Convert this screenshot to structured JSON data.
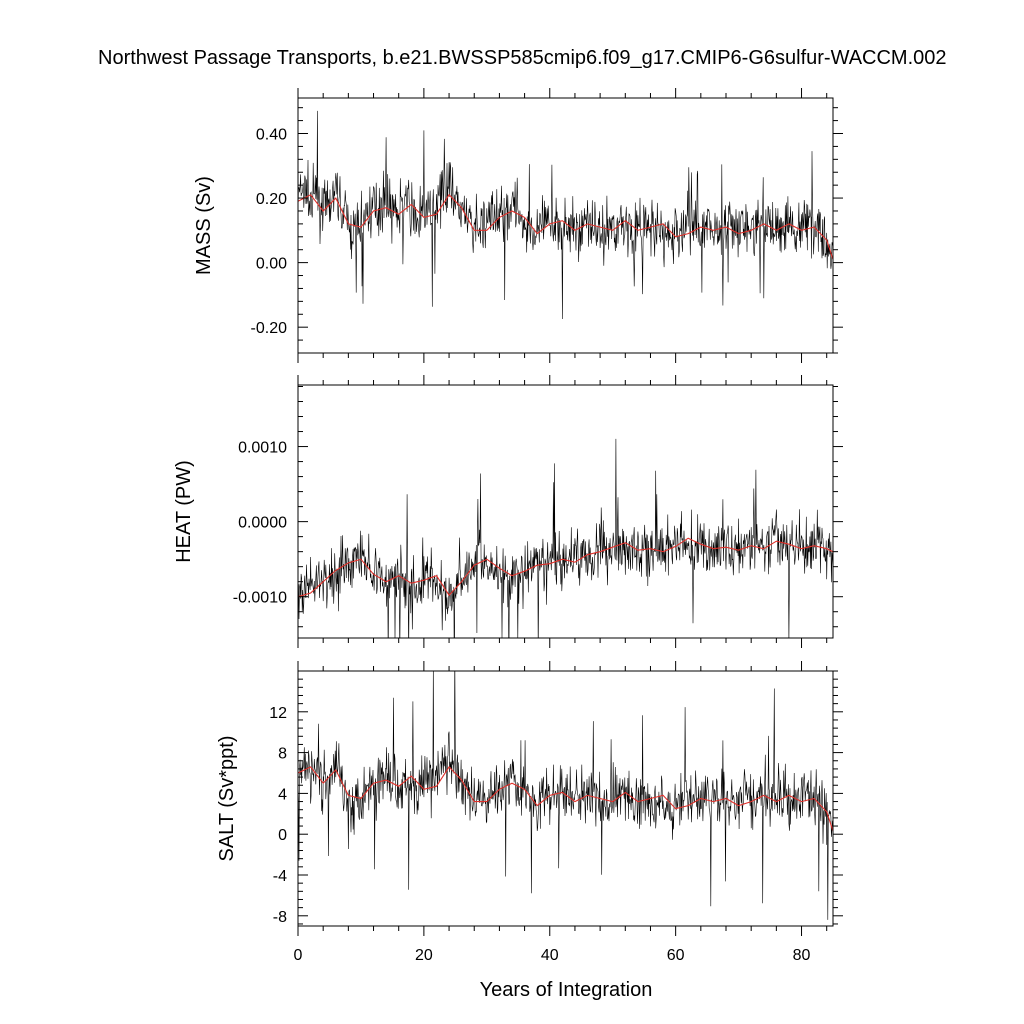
{
  "title": "Northwest Passage Transports, b.e21.BWSSP585cmip6.f09_g17.CMIP6-G6sulfur-WACCM.002",
  "xlabel": "Years of Integration",
  "colors": {
    "raw": "#000000",
    "smooth": "#e0302a",
    "frame": "#000000"
  },
  "chart_data": [
    {
      "type": "line",
      "ylabel": "MASS (Sv)",
      "xlim": [
        0,
        85
      ],
      "ylim": [
        -0.28,
        0.51
      ],
      "x_ticks": [
        0,
        20,
        40,
        60,
        80
      ],
      "x_tick_labels": [
        "0",
        "20",
        "40",
        "60",
        "80"
      ],
      "y_ticks": [
        -0.2,
        0.0,
        0.2,
        0.4
      ],
      "y_tick_labels": [
        "-0.20",
        "0.00",
        "0.20",
        "0.40"
      ],
      "series": [
        {
          "role": "monthly",
          "x": [
            0,
            1,
            2,
            3,
            4,
            5,
            6,
            7,
            8,
            9,
            10,
            11,
            12,
            13,
            14,
            15,
            16,
            17,
            18,
            19,
            20,
            21,
            22,
            23,
            24,
            25,
            26,
            27,
            28,
            29,
            30,
            31,
            32,
            33,
            34,
            35,
            36,
            37,
            38,
            39,
            40,
            41,
            42,
            43,
            44,
            45,
            46,
            47,
            48,
            49,
            50,
            51,
            52,
            53,
            54,
            55,
            56,
            57,
            58,
            59,
            60,
            61,
            62,
            63,
            64,
            65,
            66,
            67,
            68,
            69,
            70,
            71,
            72,
            73,
            74,
            75,
            76,
            77,
            78,
            79,
            80,
            81,
            82,
            83,
            84,
            85
          ],
          "y": [
            0.2,
            0.23,
            0.18,
            0.21,
            0.16,
            0.17,
            0.21,
            0.18,
            0.12,
            0.09,
            0.13,
            0.16,
            0.17,
            0.18,
            0.2,
            0.17,
            0.15,
            0.2,
            0.16,
            0.14,
            0.15,
            0.16,
            0.18,
            0.22,
            0.25,
            0.2,
            0.15,
            0.12,
            0.1,
            0.11,
            0.12,
            0.14,
            0.15,
            0.17,
            0.18,
            0.16,
            0.12,
            0.1,
            0.08,
            0.12,
            0.11,
            0.14,
            0.13,
            0.1,
            0.12,
            0.11,
            0.14,
            0.12,
            0.09,
            0.1,
            0.11,
            0.13,
            0.12,
            0.09,
            0.1,
            0.12,
            0.11,
            0.1,
            0.09,
            0.08,
            0.09,
            0.1,
            0.12,
            0.11,
            0.1,
            0.09,
            0.12,
            0.1,
            0.11,
            0.09,
            0.1,
            0.12,
            0.11,
            0.1,
            0.13,
            0.12,
            0.1,
            0.11,
            0.12,
            0.1,
            0.13,
            0.12,
            0.11,
            0.1,
            0.05,
            0.02
          ]
        },
        {
          "role": "smoothed",
          "x": [
            0,
            2,
            4,
            6,
            8,
            10,
            12,
            14,
            16,
            18,
            20,
            22,
            24,
            26,
            28,
            30,
            32,
            34,
            36,
            38,
            40,
            42,
            44,
            46,
            48,
            50,
            52,
            54,
            56,
            58,
            60,
            62,
            64,
            66,
            68,
            70,
            72,
            74,
            76,
            78,
            80,
            82,
            84,
            85
          ],
          "y": [
            0.19,
            0.21,
            0.16,
            0.2,
            0.12,
            0.11,
            0.16,
            0.17,
            0.15,
            0.18,
            0.14,
            0.15,
            0.21,
            0.17,
            0.1,
            0.1,
            0.14,
            0.16,
            0.14,
            0.09,
            0.12,
            0.13,
            0.1,
            0.12,
            0.11,
            0.1,
            0.13,
            0.1,
            0.11,
            0.12,
            0.08,
            0.09,
            0.11,
            0.1,
            0.11,
            0.09,
            0.1,
            0.12,
            0.1,
            0.12,
            0.1,
            0.11,
            0.07,
            0.01
          ]
        }
      ]
    },
    {
      "type": "line",
      "ylabel": "HEAT (PW)",
      "xlim": [
        0,
        85
      ],
      "ylim": [
        -0.00155,
        0.00182
      ],
      "x_ticks": [
        0,
        20,
        40,
        60,
        80
      ],
      "x_tick_labels": [
        "0",
        "20",
        "40",
        "60",
        "80"
      ],
      "y_ticks": [
        -0.001,
        0.0,
        0.001
      ],
      "y_tick_labels": [
        "-0.0010",
        "0.0000",
        "0.0010"
      ],
      "series": [
        {
          "role": "monthly",
          "x": [
            0,
            1,
            2,
            3,
            4,
            5,
            6,
            7,
            8,
            9,
            10,
            11,
            12,
            13,
            14,
            15,
            16,
            17,
            18,
            19,
            20,
            21,
            22,
            23,
            24,
            25,
            26,
            27,
            28,
            29,
            30,
            31,
            32,
            33,
            34,
            35,
            36,
            37,
            38,
            39,
            40,
            41,
            42,
            43,
            44,
            45,
            46,
            47,
            48,
            49,
            50,
            51,
            52,
            53,
            54,
            55,
            56,
            57,
            58,
            59,
            60,
            61,
            62,
            63,
            64,
            65,
            66,
            67,
            68,
            69,
            70,
            71,
            72,
            73,
            74,
            75,
            76,
            77,
            78,
            79,
            80,
            81,
            82,
            83,
            84,
            85
          ],
          "y": [
            -0.00095,
            -0.001,
            -0.0009,
            -0.00085,
            -0.0008,
            -0.00075,
            -0.0007,
            -0.0006,
            -0.00055,
            -0.0005,
            -0.00045,
            -0.00055,
            -0.0007,
            -0.00075,
            -0.0008,
            -0.00075,
            -0.0007,
            -0.0008,
            -0.00085,
            -0.0008,
            -0.00075,
            -0.0007,
            -0.00085,
            -0.00095,
            -0.001,
            -0.00085,
            -0.00075,
            -0.00065,
            -0.00055,
            -0.0005,
            -0.00055,
            -0.0006,
            -0.00065,
            -0.0007,
            -0.00075,
            -0.0007,
            -0.00065,
            -0.0006,
            -0.00055,
            -0.0006,
            -0.00055,
            -0.0005,
            -0.00055,
            -0.0005,
            -0.00045,
            -0.0004,
            -0.00045,
            -0.0004,
            -0.00035,
            -0.0004,
            -0.00035,
            -0.0003,
            -0.00035,
            -0.0004,
            -0.00035,
            -0.0004,
            -0.00035,
            -0.00045,
            -0.0004,
            -0.00035,
            -0.0003,
            -0.00025,
            -0.0003,
            -0.00035,
            -0.0003,
            -0.00035,
            -0.0004,
            -0.00035,
            -0.0003,
            -0.00035,
            -0.0004,
            -0.00035,
            -0.0003,
            -0.00035,
            -0.0004,
            -0.0003,
            -0.00025,
            -0.0003,
            -0.00035,
            -0.0003,
            -0.0004,
            -0.00035,
            -0.0003,
            -0.00035,
            -0.0004,
            -0.00045
          ]
        },
        {
          "role": "smoothed",
          "x": [
            0,
            2,
            4,
            6,
            8,
            10,
            12,
            14,
            16,
            18,
            20,
            22,
            24,
            26,
            28,
            30,
            32,
            34,
            36,
            38,
            40,
            42,
            44,
            46,
            48,
            50,
            52,
            54,
            56,
            58,
            60,
            62,
            64,
            66,
            68,
            70,
            72,
            74,
            76,
            78,
            80,
            82,
            84,
            85
          ],
          "y": [
            -0.001,
            -0.00095,
            -0.0008,
            -0.00065,
            -0.00055,
            -0.0005,
            -0.0007,
            -0.0008,
            -0.00072,
            -0.00082,
            -0.00078,
            -0.00072,
            -0.00098,
            -0.0008,
            -0.00058,
            -0.0005,
            -0.00062,
            -0.00072,
            -0.00066,
            -0.00058,
            -0.00056,
            -0.0005,
            -0.00054,
            -0.00044,
            -0.0004,
            -0.00034,
            -0.00028,
            -0.00038,
            -0.00036,
            -0.0004,
            -0.00033,
            -0.00022,
            -0.0003,
            -0.00036,
            -0.00034,
            -0.00038,
            -0.00032,
            -0.00036,
            -0.00026,
            -0.0003,
            -0.00036,
            -0.00032,
            -0.00036,
            -0.0004
          ]
        }
      ]
    },
    {
      "type": "line",
      "ylabel": "SALT (Sv*ppt)",
      "xlim": [
        0,
        85
      ],
      "ylim": [
        -9.0,
        16.0
      ],
      "x_ticks": [
        0,
        20,
        40,
        60,
        80
      ],
      "x_tick_labels": [
        "0",
        "20",
        "40",
        "60",
        "80"
      ],
      "y_ticks": [
        -8,
        -4,
        0,
        4,
        8,
        12
      ],
      "y_tick_labels": [
        "-8",
        "-4",
        "0",
        "4",
        "8",
        "12"
      ],
      "series": [
        {
          "role": "monthly",
          "x": [
            0,
            1,
            2,
            3,
            4,
            5,
            6,
            7,
            8,
            9,
            10,
            11,
            12,
            13,
            14,
            15,
            16,
            17,
            18,
            19,
            20,
            21,
            22,
            23,
            24,
            25,
            26,
            27,
            28,
            29,
            30,
            31,
            32,
            33,
            34,
            35,
            36,
            37,
            38,
            39,
            40,
            41,
            42,
            43,
            44,
            45,
            46,
            47,
            48,
            49,
            50,
            51,
            52,
            53,
            54,
            55,
            56,
            57,
            58,
            59,
            60,
            61,
            62,
            63,
            64,
            65,
            66,
            67,
            68,
            69,
            70,
            71,
            72,
            73,
            74,
            75,
            76,
            77,
            78,
            79,
            80,
            81,
            82,
            83,
            84,
            85
          ],
          "y": [
            6.3,
            7.2,
            5.7,
            6.6,
            5.0,
            5.3,
            6.6,
            5.7,
            3.8,
            2.8,
            4.1,
            5.0,
            5.3,
            5.7,
            6.3,
            5.3,
            4.7,
            6.3,
            5.0,
            4.4,
            4.7,
            5.0,
            5.7,
            6.9,
            7.9,
            6.3,
            4.7,
            3.8,
            3.2,
            3.5,
            3.8,
            4.4,
            4.7,
            5.3,
            5.7,
            5.0,
            3.8,
            3.2,
            2.5,
            3.8,
            3.5,
            4.4,
            4.1,
            3.2,
            3.8,
            3.5,
            4.4,
            3.8,
            2.8,
            3.2,
            3.5,
            4.1,
            3.8,
            2.8,
            3.2,
            3.8,
            3.5,
            3.2,
            2.8,
            2.5,
            2.8,
            3.2,
            3.8,
            3.5,
            3.2,
            2.8,
            3.8,
            3.2,
            3.5,
            2.8,
            3.2,
            3.8,
            3.5,
            3.2,
            4.1,
            3.8,
            3.2,
            3.5,
            3.8,
            3.2,
            4.1,
            3.8,
            3.5,
            3.2,
            1.6,
            0.6
          ]
        },
        {
          "role": "smoothed",
          "x": [
            0,
            2,
            4,
            6,
            8,
            10,
            12,
            14,
            16,
            18,
            20,
            22,
            24,
            26,
            28,
            30,
            32,
            34,
            36,
            38,
            40,
            42,
            44,
            46,
            48,
            50,
            52,
            54,
            56,
            58,
            60,
            62,
            64,
            66,
            68,
            70,
            72,
            74,
            76,
            78,
            80,
            82,
            84,
            85
          ],
          "y": [
            6.0,
            6.6,
            5.0,
            6.3,
            3.8,
            3.5,
            5.0,
            5.3,
            4.7,
            5.7,
            4.4,
            4.7,
            6.6,
            5.3,
            3.2,
            3.2,
            4.4,
            5.0,
            4.4,
            2.8,
            3.8,
            4.1,
            3.2,
            3.8,
            3.5,
            3.2,
            4.1,
            3.2,
            3.5,
            3.8,
            2.5,
            2.8,
            3.5,
            3.2,
            3.5,
            2.8,
            3.2,
            3.8,
            3.2,
            3.8,
            3.2,
            3.5,
            2.2,
            0.3
          ]
        }
      ]
    }
  ]
}
